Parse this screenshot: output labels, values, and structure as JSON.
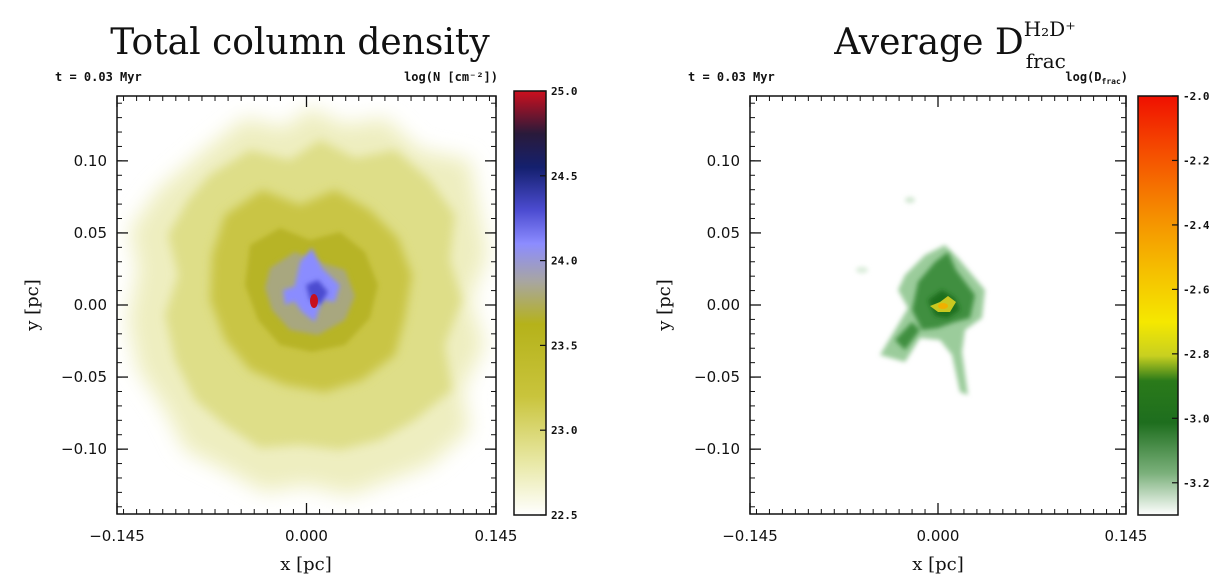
{
  "chart_data": [
    {
      "type": "heatmap",
      "title": "Total column density",
      "time_label": "t =  0.03 Myr",
      "colorbar_label": "log(N [cm⁻²])",
      "xlabel": "x [pc]",
      "ylabel": "y [pc]",
      "xlim": [
        -0.145,
        0.145
      ],
      "ylim": [
        -0.145,
        0.145
      ],
      "x_ticks": [
        -0.145,
        0.0,
        0.145
      ],
      "x_tick_labels": [
        "−0.145",
        "0.000",
        "0.145"
      ],
      "y_ticks": [
        -0.1,
        -0.05,
        0.0,
        0.05,
        0.1
      ],
      "y_tick_labels": [
        "−0.10",
        "−0.05",
        "0.00",
        "0.05",
        "0.10"
      ],
      "colorbar_range": [
        22.5,
        25.0
      ],
      "colorbar_ticks": [
        22.5,
        23.0,
        23.5,
        24.0,
        24.5,
        25.0
      ],
      "colorbar_tick_labels": [
        "22.5",
        "23.0",
        "23.5",
        "24.0",
        "24.5",
        "25.0"
      ],
      "colormap": [
        "#ffffff",
        "#e9e9a8",
        "#c9c43c",
        "#b5b21a",
        "#a8a6a0",
        "#8c8cff",
        "#4b4bd0",
        "#14206e",
        "#2a1a3a",
        "#cc0f1e"
      ],
      "peak": {
        "x": 0.005,
        "y": 0.0,
        "value": 25.0
      }
    },
    {
      "type": "heatmap",
      "title_main": "Average D",
      "title_superscript": "H₂D⁺",
      "title_subscript": "frac",
      "time_label": "t =  0.03 Myr",
      "colorbar_label": "log(D",
      "colorbar_label_sub": "frac",
      "colorbar_label_end": ")",
      "xlabel": "x [pc]",
      "ylabel": "y [pc]",
      "xlim": [
        -0.145,
        0.145
      ],
      "ylim": [
        -0.145,
        0.145
      ],
      "x_ticks": [
        -0.145,
        0.0,
        0.145
      ],
      "x_tick_labels": [
        "−0.145",
        "0.000",
        "0.145"
      ],
      "y_ticks": [
        -0.1,
        -0.05,
        0.0,
        0.05,
        0.1
      ],
      "y_tick_labels": [
        "−0.10",
        "−0.05",
        "0.00",
        "0.05",
        "0.10"
      ],
      "colorbar_range": [
        -3.3,
        -2.0
      ],
      "colorbar_ticks": [
        -3.2,
        -3.0,
        -2.8,
        -2.6,
        -2.4,
        -2.2,
        -2.0
      ],
      "colorbar_tick_labels": [
        "-3.2",
        "-3.0",
        "-2.8",
        "-2.6",
        "-2.4",
        "-2.2",
        "-2.0"
      ],
      "colormap": [
        "#ffffff",
        "#7bb07b",
        "#1e6e1e",
        "#2a7a1a",
        "#c8d020",
        "#f5e800",
        "#f5c000",
        "#f58c00",
        "#f55000",
        "#f01000"
      ],
      "peak": {
        "x": 0.005,
        "y": 0.0,
        "value": -2.9
      }
    }
  ]
}
